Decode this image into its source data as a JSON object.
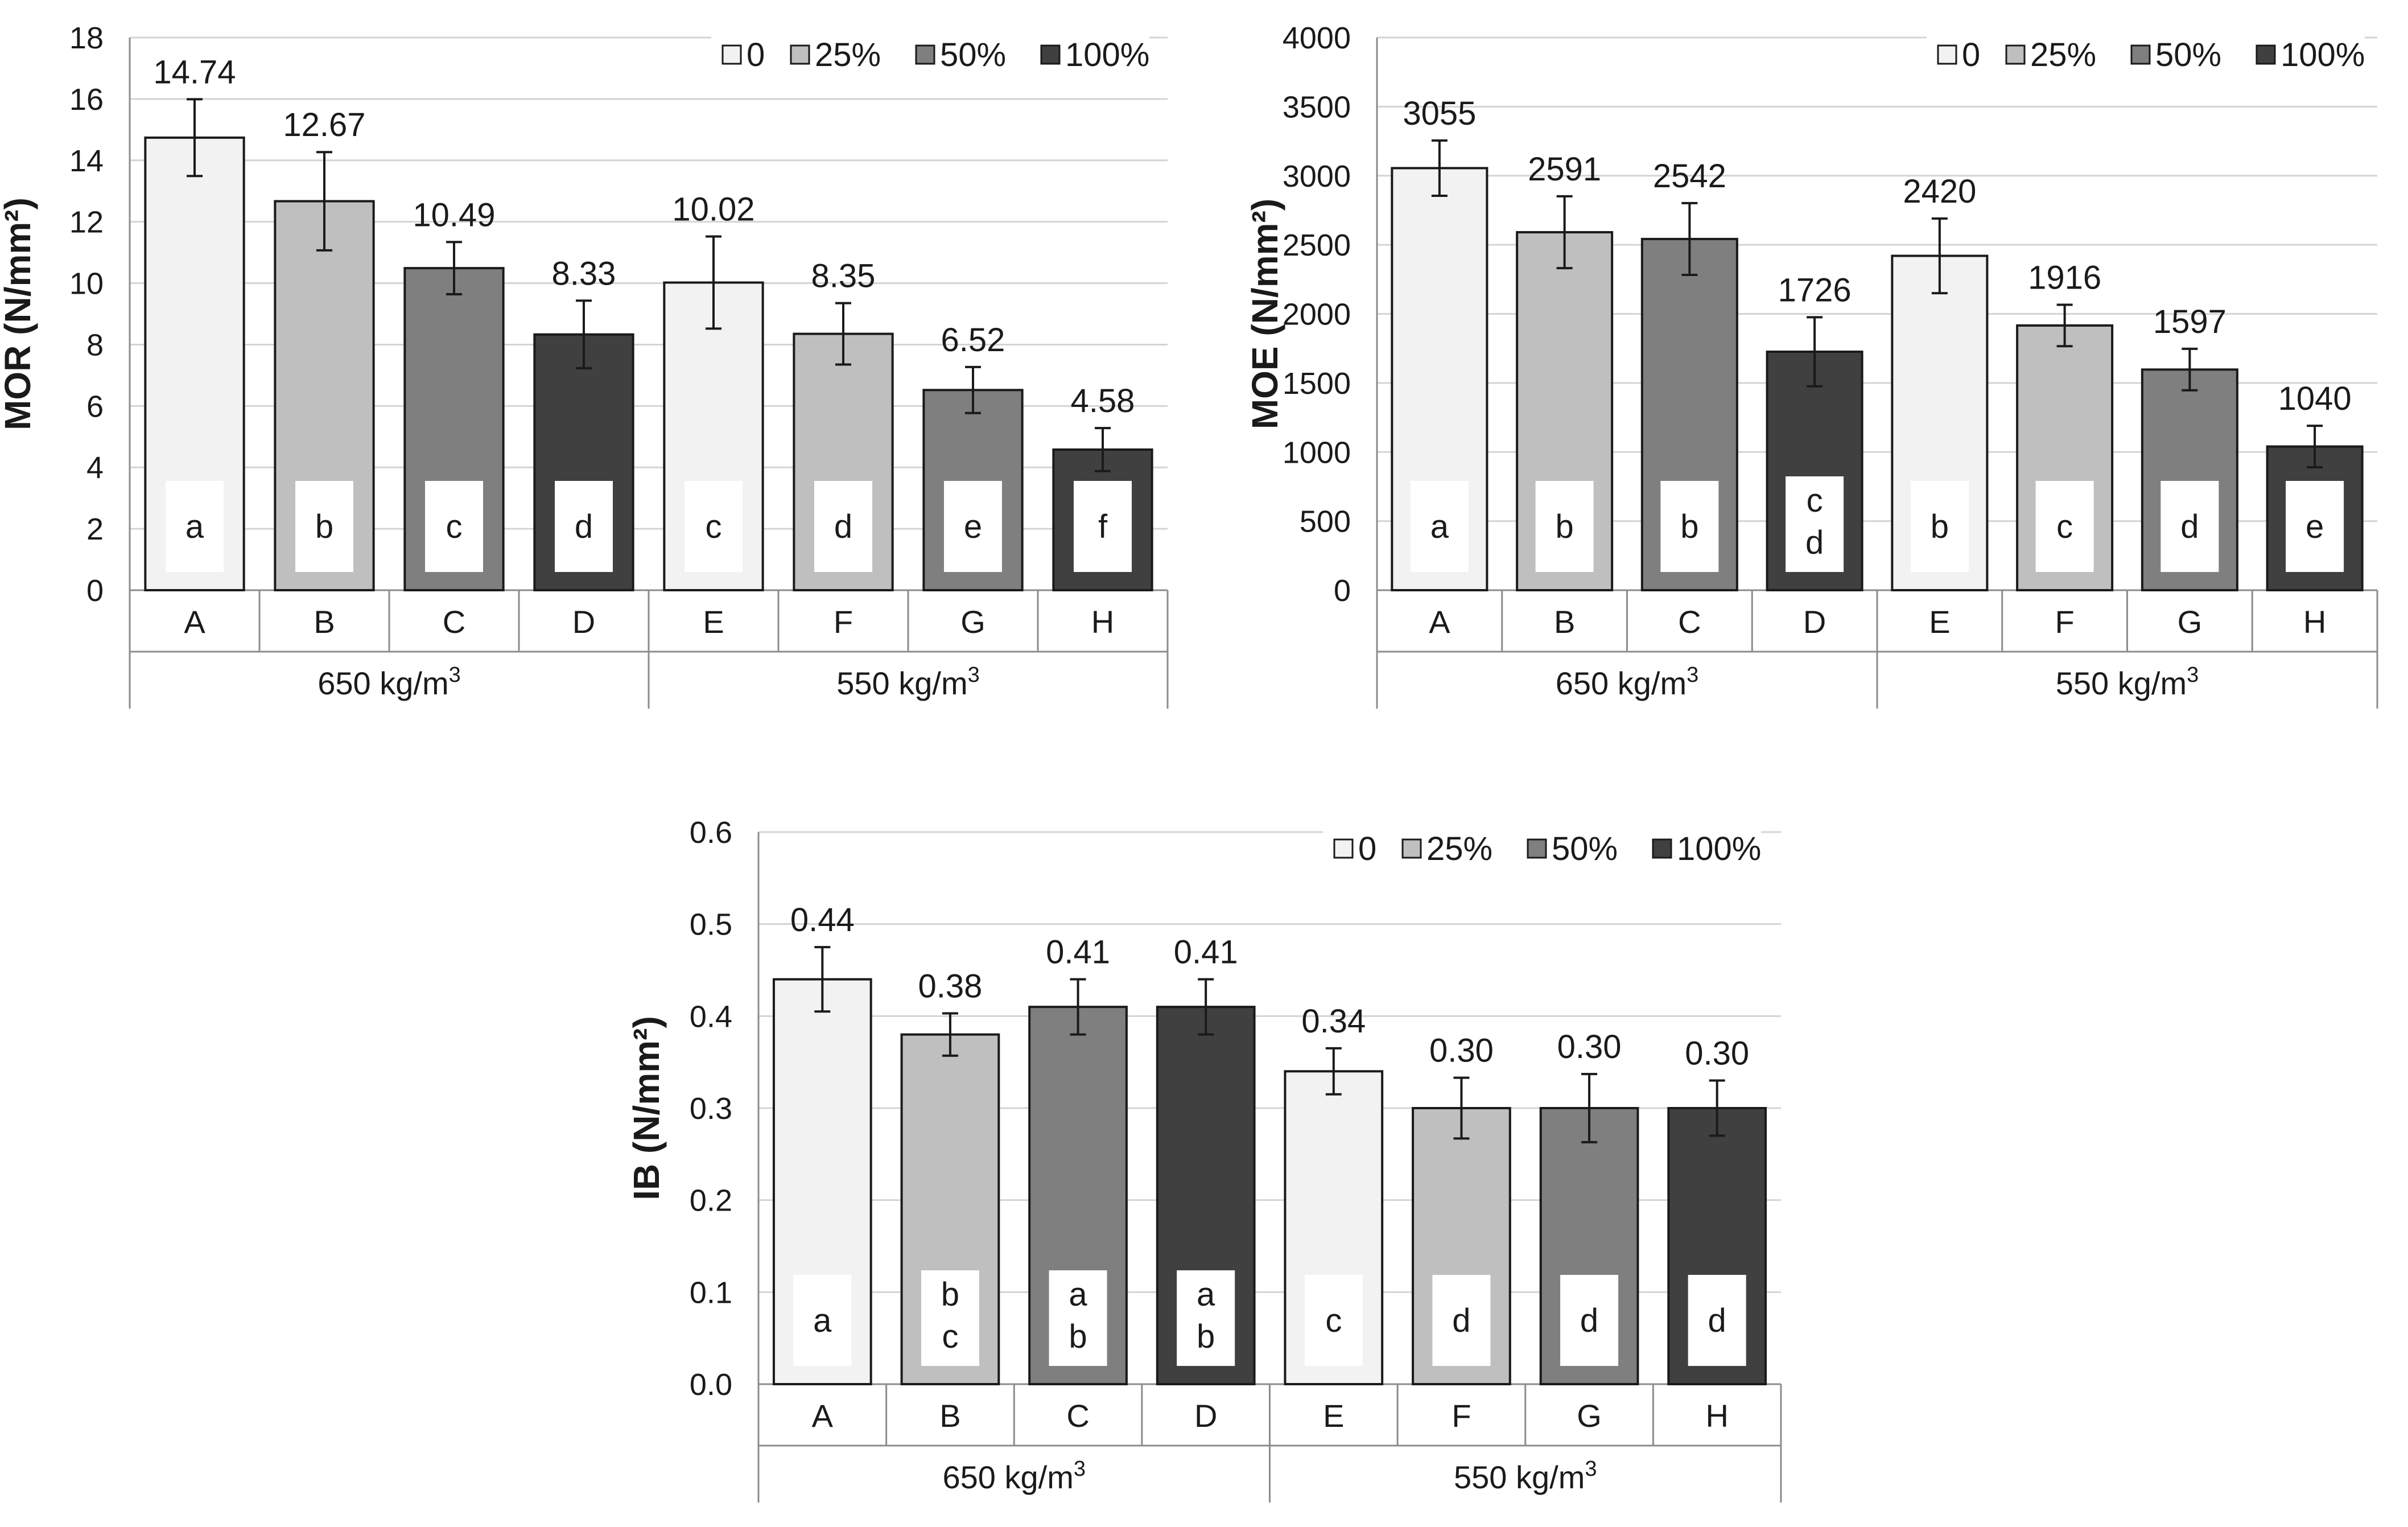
{
  "chart_data": [
    {
      "id": "mor",
      "type": "bar",
      "ylabel": "MOR (N/mm²)",
      "ylim": [
        0,
        18
      ],
      "yticks": [
        "0",
        "2",
        "4",
        "6",
        "8",
        "10",
        "12",
        "14",
        "16",
        "18"
      ],
      "categories": [
        "A",
        "B",
        "C",
        "D",
        "E",
        "F",
        "G",
        "H"
      ],
      "groups": [
        "650 kg/m",
        "550 kg/m"
      ],
      "group_superscript": "3",
      "legend": [
        "0",
        "25%",
        "50%",
        "100%"
      ],
      "values": [
        14.74,
        12.67,
        10.49,
        8.33,
        10.02,
        8.35,
        6.52,
        4.58
      ],
      "value_labels": [
        "14.74",
        "12.67",
        "10.49",
        "8.33",
        "10.02",
        "8.35",
        "6.52",
        "4.58"
      ],
      "error": [
        1.25,
        1.6,
        0.85,
        1.1,
        1.5,
        1.0,
        0.75,
        0.7
      ],
      "letters": [
        [
          "a"
        ],
        [
          "b"
        ],
        [
          "c"
        ],
        [
          "d"
        ],
        [
          "c"
        ],
        [
          "d"
        ],
        [
          "e"
        ],
        [
          "f"
        ]
      ]
    },
    {
      "id": "moe",
      "type": "bar",
      "ylabel": "MOE (N/mm²)",
      "ylim": [
        0,
        4000
      ],
      "yticks": [
        "0",
        "500",
        "1000",
        "1500",
        "2000",
        "2500",
        "3000",
        "3500",
        "4000"
      ],
      "categories": [
        "A",
        "B",
        "C",
        "D",
        "E",
        "F",
        "G",
        "H"
      ],
      "groups": [
        "650 kg/m",
        "550 kg/m"
      ],
      "group_superscript": "3",
      "legend": [
        "0",
        "25%",
        "50%",
        "100%"
      ],
      "values": [
        3055,
        2591,
        2542,
        1726,
        2420,
        1916,
        1597,
        1040
      ],
      "value_labels": [
        "3055",
        "2591",
        "2542",
        "1726",
        "2420",
        "1916",
        "1597",
        "1040"
      ],
      "error": [
        200,
        260,
        260,
        250,
        270,
        150,
        150,
        150
      ],
      "letters": [
        [
          "a"
        ],
        [
          "b"
        ],
        [
          "b"
        ],
        [
          "c",
          "d"
        ],
        [
          "b"
        ],
        [
          "c"
        ],
        [
          "d"
        ],
        [
          "e"
        ]
      ]
    },
    {
      "id": "ib",
      "type": "bar",
      "ylabel": "IB (N/mm²)",
      "ylim": [
        0,
        0.6
      ],
      "yticks": [
        "0.0",
        "0.1",
        "0.2",
        "0.3",
        "0.4",
        "0.5",
        "0.6"
      ],
      "categories": [
        "A",
        "B",
        "C",
        "D",
        "E",
        "F",
        "G",
        "H"
      ],
      "groups": [
        "650 kg/m",
        "550 kg/m"
      ],
      "group_superscript": "3",
      "legend": [
        "0",
        "25%",
        "50%",
        "100%"
      ],
      "values": [
        0.44,
        0.38,
        0.41,
        0.41,
        0.34,
        0.3,
        0.3,
        0.3
      ],
      "value_labels": [
        "0.44",
        "0.38",
        "0.41",
        "0.41",
        "0.34",
        "0.30",
        "0.30",
        "0.30"
      ],
      "error": [
        0.035,
        0.023,
        0.03,
        0.03,
        0.025,
        0.033,
        0.037,
        0.03
      ],
      "letters": [
        [
          "a"
        ],
        [
          "b",
          "c"
        ],
        [
          "a",
          "b"
        ],
        [
          "a",
          "b"
        ],
        [
          "c"
        ],
        [
          "d"
        ],
        [
          "d"
        ],
        [
          "d"
        ]
      ]
    }
  ],
  "colors": {
    "fills": [
      "#f2f2f2",
      "#bfbfbf",
      "#7f7f7f",
      "#404040"
    ],
    "bar_stroke": "#1a1a1a",
    "grid": "#d4d4d4",
    "axis": "#8c8c8c",
    "text": "#1a1a1a"
  }
}
